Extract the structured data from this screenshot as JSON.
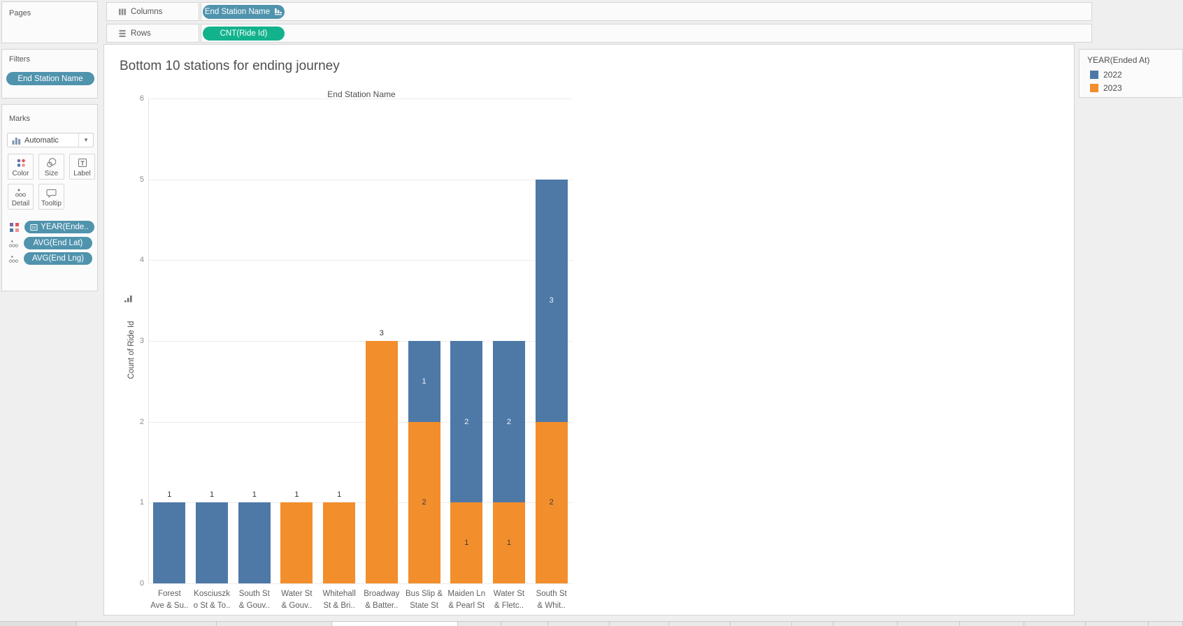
{
  "panels": {
    "pages": {
      "label": "Pages"
    },
    "filters": {
      "label": "Filters",
      "pill": "End Station Name"
    },
    "marks": {
      "label": "Marks",
      "mark_type": "Automatic",
      "buttons": {
        "color": "Color",
        "size": "Size",
        "label": "Label",
        "detail": "Detail",
        "tooltip": "Tooltip"
      },
      "pills": {
        "color_pill": "YEAR(Ende..",
        "lat_pill": "AVG(End Lat)",
        "lng_pill": "AVG(End Lng)"
      }
    }
  },
  "shelves": {
    "columns": {
      "label": "Columns",
      "pill": "End Station Name"
    },
    "rows": {
      "label": "Rows",
      "pill": "CNT(Ride Id)"
    }
  },
  "legend": {
    "title": "YEAR(Ended At)",
    "items": [
      {
        "label": "2022",
        "color": "#4e79a7"
      },
      {
        "label": "2023",
        "color": "#f28e2b"
      }
    ]
  },
  "colors": {
    "bar_2022": "#4e79a7",
    "bar_2023": "#f28e2b",
    "dimension_pill": "#5093ad",
    "measure_pill": "#12b28c"
  },
  "chart_data": {
    "type": "bar",
    "stacked": true,
    "title": "Bottom 10 stations for ending journey",
    "x_header": "End Station Name",
    "ylabel": "Count of Ride Id",
    "ylim": [
      0,
      6
    ],
    "yticks": [
      0,
      1,
      2,
      3,
      4,
      5,
      6
    ],
    "grid": true,
    "legend_position": "top-right",
    "categories": [
      [
        "Forest",
        "Ave & Su.."
      ],
      [
        "Kosciuszk",
        "o St & To.."
      ],
      [
        "South St",
        "& Gouv.."
      ],
      [
        "Water St",
        "& Gouv.."
      ],
      [
        "Whitehall",
        "St & Bri.."
      ],
      [
        "Broadway",
        "& Batter.."
      ],
      [
        "Bus Slip &",
        "State St"
      ],
      [
        "Maiden Ln",
        "& Pearl St"
      ],
      [
        "Water St",
        "& Fletc.."
      ],
      [
        "South St",
        "& Whit.."
      ]
    ],
    "series": [
      {
        "name": "2022",
        "color": "#4e79a7",
        "values": [
          1,
          1,
          1,
          0,
          0,
          0,
          1,
          2,
          2,
          3
        ]
      },
      {
        "name": "2023",
        "color": "#f28e2b",
        "values": [
          0,
          0,
          0,
          1,
          1,
          3,
          2,
          1,
          1,
          2
        ]
      }
    ]
  }
}
